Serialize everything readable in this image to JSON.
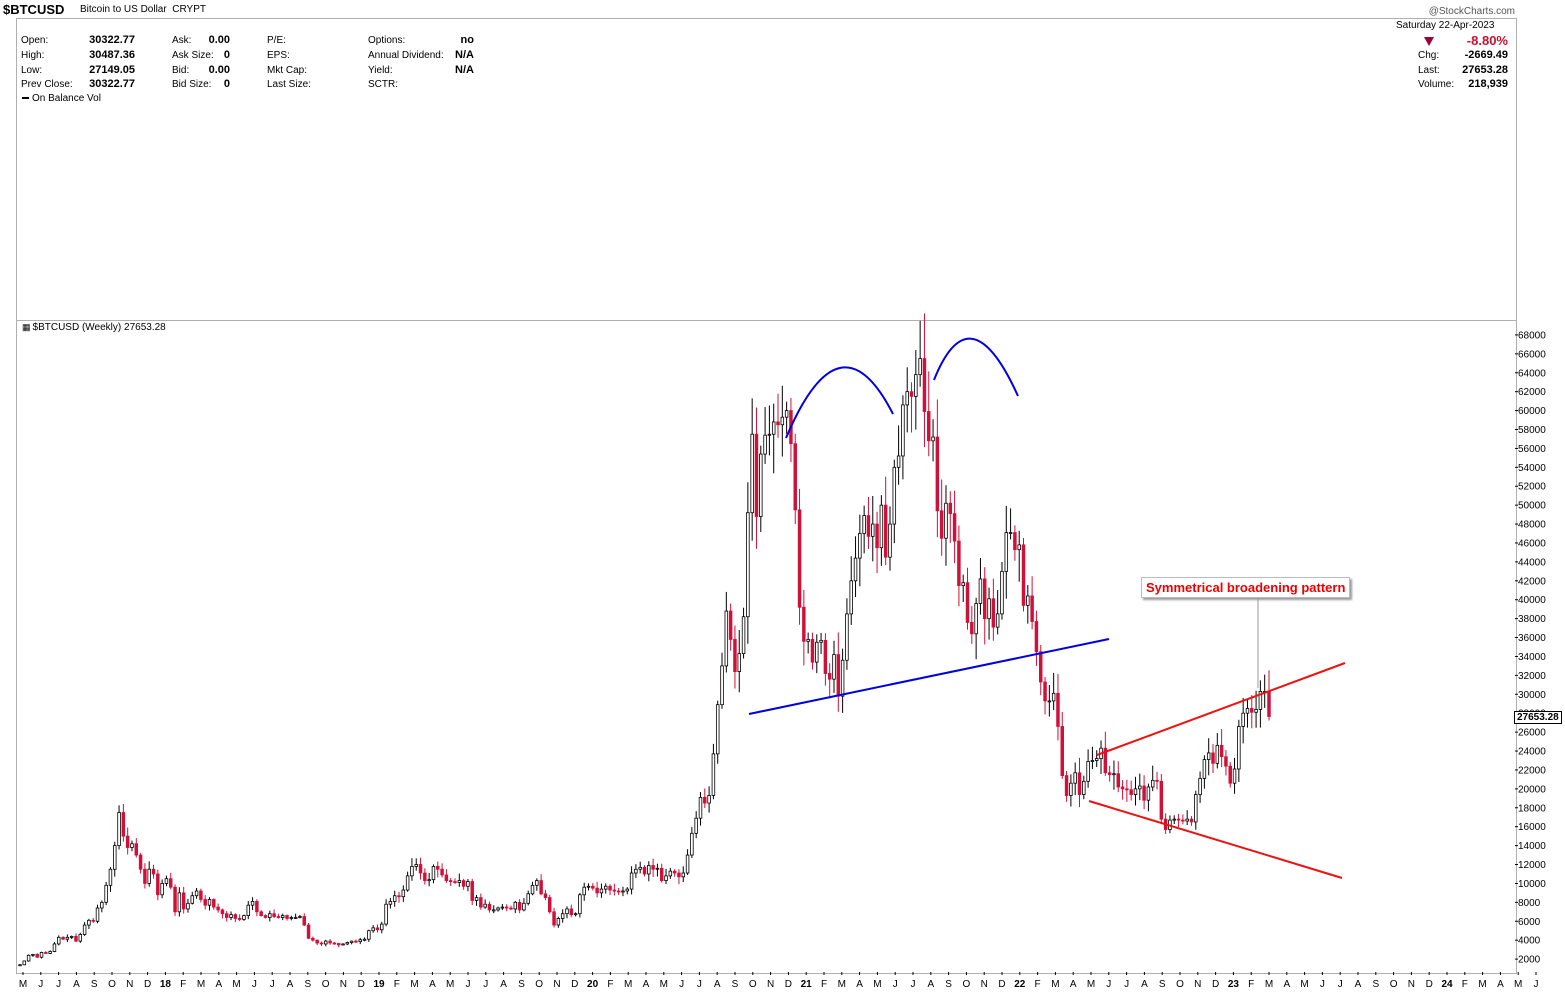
{
  "header": {
    "symbol": "$BTCUSD",
    "description": "Bitcoin to US Dollar",
    "exchange": "CRYPT",
    "stamp": "@StockCharts.com"
  },
  "quote_left": [
    {
      "label": "Open:",
      "value": "30322.77"
    },
    {
      "label": "High:",
      "value": "30487.36"
    },
    {
      "label": "Low:",
      "value": "27149.05"
    },
    {
      "label": "Prev Close:",
      "value": "30322.77"
    }
  ],
  "quote_mid": [
    {
      "label": "Ask:",
      "value": "0.00"
    },
    {
      "label": "Ask Size:",
      "value": "0"
    },
    {
      "label": "Bid:",
      "value": "0.00"
    },
    {
      "label": "Bid Size:",
      "value": "0"
    }
  ],
  "quote_fund": [
    {
      "label": "P/E:",
      "value": ""
    },
    {
      "label": "EPS:",
      "value": ""
    },
    {
      "label": "Mkt Cap:",
      "value": ""
    },
    {
      "label": "Last Size:",
      "value": ""
    }
  ],
  "quote_other": [
    {
      "label": "Options:",
      "value": "no"
    },
    {
      "label": "Annual Dividend:",
      "value": "N/A"
    },
    {
      "label": "Yield:",
      "value": "N/A"
    },
    {
      "label": "SCTR:",
      "value": ""
    }
  ],
  "quote_right": {
    "date": "Saturday  22-Apr-2023",
    "pct_change": "-8.80%",
    "chg_label": "Chg:",
    "chg": "-2669.49",
    "last_label": "Last:",
    "last": "27653.28",
    "volume_label": "Volume:",
    "volume": "218,939"
  },
  "indicator_label": "On Balance Vol",
  "series_label": "$BTCUSD (Weekly) 27653.28",
  "annotation": "Symmetrical broadening pattern",
  "last_badge": "27653.28",
  "colors": {
    "up": "#000000",
    "down": "#d0103a",
    "neckline": "#0000dd",
    "broadening": "#ee1111",
    "annotation": "#ee0000"
  },
  "chart_data": {
    "type": "candlestick",
    "frequency": "weekly",
    "ylim": [
      0,
      70000
    ],
    "y_ticks": [
      2000,
      4000,
      6000,
      8000,
      10000,
      12000,
      14000,
      16000,
      18000,
      20000,
      22000,
      24000,
      26000,
      28000,
      30000,
      32000,
      34000,
      36000,
      38000,
      40000,
      42000,
      44000,
      46000,
      48000,
      50000,
      52000,
      54000,
      56000,
      58000,
      60000,
      62000,
      64000,
      66000,
      68000
    ],
    "x_ticks": [
      "M",
      "J",
      "J",
      "A",
      "S",
      "O",
      "N",
      "D",
      "18",
      "F",
      "M",
      "A",
      "M",
      "J",
      "J",
      "A",
      "S",
      "O",
      "N",
      "D",
      "19",
      "F",
      "M",
      "A",
      "M",
      "J",
      "J",
      "A",
      "S",
      "O",
      "N",
      "D",
      "20",
      "F",
      "M",
      "A",
      "M",
      "J",
      "J",
      "A",
      "S",
      "O",
      "N",
      "D",
      "21",
      "F",
      "M",
      "A",
      "M",
      "J",
      "J",
      "A",
      "S",
      "O",
      "N",
      "D",
      "22",
      "F",
      "M",
      "A",
      "M",
      "J",
      "J",
      "A",
      "S",
      "O",
      "N",
      "D",
      "23",
      "F",
      "M",
      "A",
      "M",
      "J",
      "J",
      "A",
      "S",
      "O",
      "N",
      "D",
      "24",
      "F",
      "M",
      "A",
      "M",
      "J"
    ],
    "closes": [
      1400,
      1800,
      2400,
      2500,
      2200,
      2700,
      2600,
      2800,
      3600,
      4300,
      4100,
      4300,
      4400,
      3900,
      4600,
      5600,
      6100,
      6000,
      7400,
      8000,
      9800,
      11500,
      14000,
      17500,
      15000,
      13800,
      14200,
      13000,
      11500,
      10000,
      11500,
      11000,
      8800,
      10000,
      10500,
      9600,
      7000,
      9000,
      7300,
      7900,
      8700,
      9200,
      8300,
      7700,
      8300,
      7500,
      7200,
      6800,
      6400,
      6700,
      6300,
      6200,
      6600,
      7700,
      8100,
      7000,
      6600,
      6400,
      6800,
      6500,
      6400,
      6600,
      6300,
      6400,
      6400,
      6500,
      5600,
      4200,
      4000,
      3700,
      3600,
      3900,
      3700,
      3650,
      3500,
      3600,
      3750,
      3900,
      3850,
      4050,
      4100,
      5000,
      5300,
      5100,
      5700,
      7800,
      8100,
      8700,
      8600,
      9300,
      10800,
      11800,
      12000,
      11100,
      10300,
      10400,
      11800,
      11500,
      10900,
      10300,
      10200,
      10100,
      10300,
      9700,
      10200,
      8200,
      8500,
      7500,
      7800,
      7200,
      7200,
      7400,
      7500,
      7400,
      7300,
      8000,
      7200,
      7900,
      8900,
      9800,
      10300,
      8900,
      8500,
      7000,
      5600,
      6300,
      6800,
      7300,
      6700,
      6800,
      8800,
      9600,
      9700,
      9500,
      9000,
      9400,
      9700,
      9300,
      9200,
      9100,
      9200,
      9400,
      11100,
      11500,
      11700,
      11000,
      11900,
      11500,
      11600,
      10300,
      10800,
      11300,
      11100,
      10700,
      11100,
      13000,
      15300,
      16900,
      19100,
      18500,
      19300,
      23700,
      28900,
      33000,
      38800,
      35800,
      32400,
      34300,
      38200,
      49200,
      57500,
      48800,
      55400,
      57400,
      57500,
      58800,
      58500,
      59300,
      60000,
      56500,
      49500,
      39200,
      35600,
      35800,
      33400,
      35500,
      35700,
      32200,
      31600,
      34200,
      29800,
      33600,
      38500,
      42000,
      44400,
      47000,
      48900,
      46700,
      48000,
      45500,
      50000,
      44500,
      48000,
      54000,
      55200,
      60600,
      62000,
      61500,
      63800,
      65500,
      59900,
      56800,
      57200,
      49400,
      46500,
      50200,
      49100,
      46200,
      41500,
      41800,
      37600,
      36400,
      39600,
      42200,
      38000,
      40100,
      37100,
      38500,
      43000,
      47100,
      47100,
      45300,
      45800,
      39400,
      40400,
      37700,
      34500,
      31300,
      29300,
      29300,
      30100,
      26600,
      21400,
      19300,
      20600,
      21700,
      19400,
      20800,
      22900,
      23000,
      23200,
      24300,
      21700,
      21500,
      21600,
      20200,
      20000,
      19900,
      19400,
      20000,
      20300,
      18800,
      20200,
      20900,
      20800,
      16800,
      15700,
      16700,
      16800,
      16700,
      16600,
      16800,
      16500,
      19400,
      21100,
      23100,
      23800,
      22700,
      24600,
      23400,
      22400,
      20600,
      22100,
      26600,
      28000,
      28500,
      28100,
      28400,
      30300,
      30300,
      27650
    ]
  }
}
